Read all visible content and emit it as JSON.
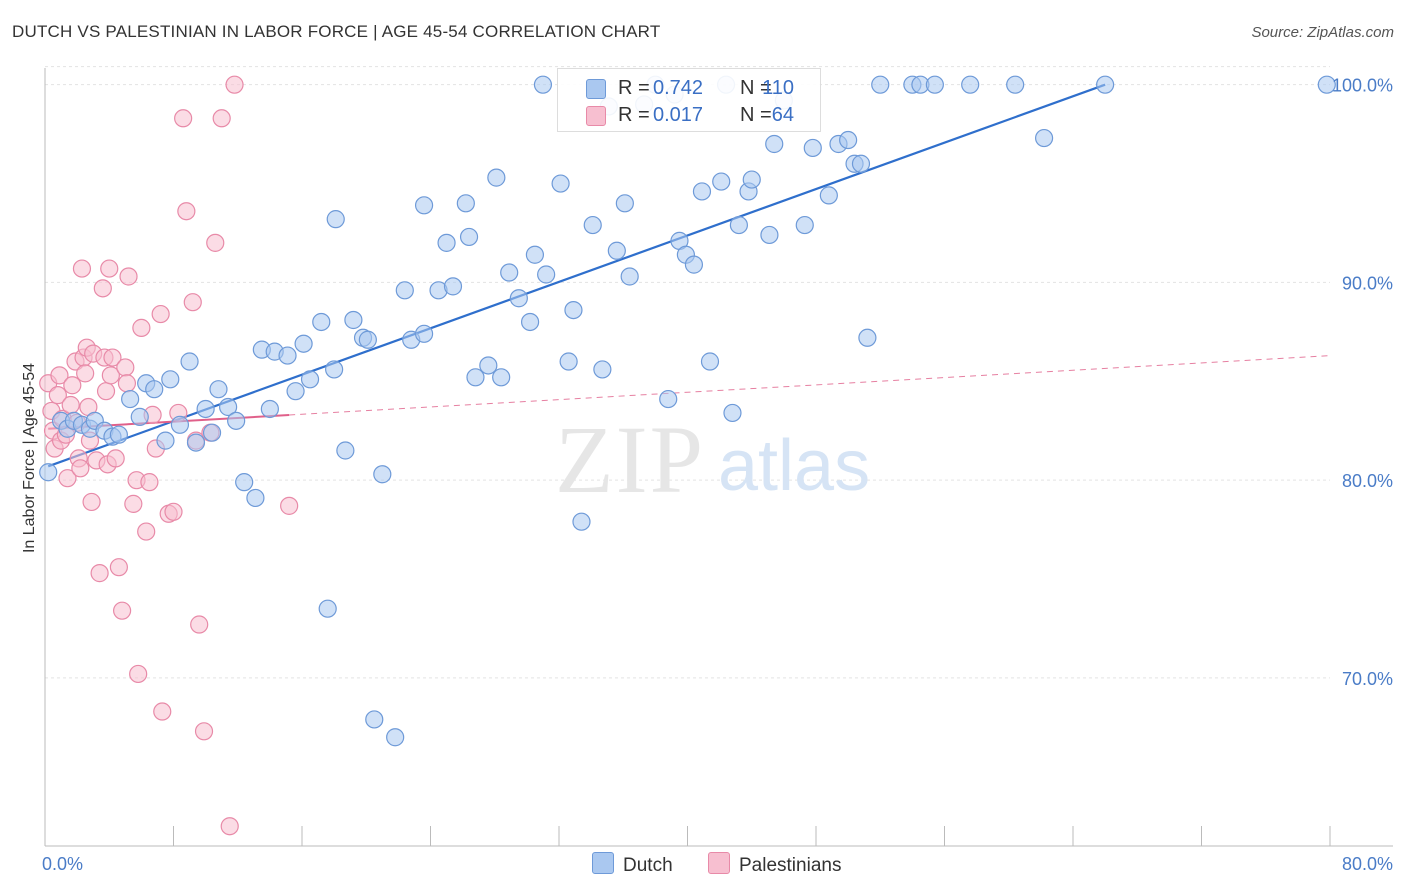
{
  "title": "DUTCH VS PALESTINIAN IN LABOR FORCE | AGE 45-54 CORRELATION CHART",
  "source": "Source: ZipAtlas.com",
  "watermark": {
    "zip": "ZIP",
    "atlas": "atlas"
  },
  "colors": {
    "dutch_fill": "#aac8f0",
    "dutch_stroke": "#6e9ad8",
    "dutch_line": "#2f6fcc",
    "pal_fill": "#f7bfd0",
    "pal_stroke": "#e88aa8",
    "pal_line": "#e0608a",
    "grid": "#e3e3e3",
    "tick_text": "#4a7cc7"
  },
  "legend": {
    "rows": [
      {
        "r_label": "R =",
        "r_value": "0.742",
        "n_label": "N =",
        "n_value": "110"
      },
      {
        "r_label": "R =",
        "r_value": "0.017",
        "n_label": "N =",
        "n_value": "64"
      }
    ]
  },
  "bottom_legend": {
    "dutch": "Dutch",
    "pal": "Palestinians"
  },
  "chart_data": {
    "type": "scatter",
    "title": "DUTCH VS PALESTINIAN IN LABOR FORCE | AGE 45-54 CORRELATION CHART",
    "ylabel": "In Labor Force | Age 45-54",
    "xlabel": "",
    "xlim": [
      0,
      80
    ],
    "ylim": [
      61.5,
      101.5
    ],
    "x_tick_labels": [
      "0.0%",
      "80.0%"
    ],
    "y_ticks": [
      70,
      80,
      90,
      100
    ],
    "y_tick_labels": [
      "70.0%",
      "80.0%",
      "90.0%",
      "100.0%"
    ],
    "grid": true,
    "legend_position": "top-center",
    "series": [
      {
        "name": "Dutch",
        "stats": {
          "R": 0.742,
          "N": 110
        },
        "trend": {
          "x0": 0.2,
          "y0": 80.7,
          "x1": 66.0,
          "y1": 100.0,
          "style": "solid"
        },
        "points": [
          [
            0.2,
            80.4
          ],
          [
            1.0,
            83.0
          ],
          [
            1.4,
            82.6
          ],
          [
            1.8,
            83.0
          ],
          [
            2.3,
            82.8
          ],
          [
            2.8,
            82.6
          ],
          [
            3.1,
            83.0
          ],
          [
            3.7,
            82.5
          ],
          [
            4.2,
            82.2
          ],
          [
            4.6,
            82.3
          ],
          [
            5.3,
            84.1
          ],
          [
            5.9,
            83.2
          ],
          [
            6.3,
            84.9
          ],
          [
            6.8,
            84.6
          ],
          [
            7.5,
            82.0
          ],
          [
            7.8,
            85.1
          ],
          [
            8.4,
            82.8
          ],
          [
            9.0,
            86.0
          ],
          [
            9.4,
            81.9
          ],
          [
            10.0,
            83.6
          ],
          [
            10.4,
            82.4
          ],
          [
            10.8,
            84.6
          ],
          [
            11.4,
            83.7
          ],
          [
            11.9,
            83.0
          ],
          [
            12.4,
            79.9
          ],
          [
            13.1,
            79.1
          ],
          [
            13.5,
            86.6
          ],
          [
            14.0,
            83.6
          ],
          [
            14.3,
            86.5
          ],
          [
            15.1,
            86.3
          ],
          [
            15.6,
            84.5
          ],
          [
            16.1,
            86.9
          ],
          [
            16.5,
            85.1
          ],
          [
            17.2,
            88.0
          ],
          [
            17.6,
            73.5
          ],
          [
            18.0,
            85.6
          ],
          [
            18.1,
            93.2
          ],
          [
            18.7,
            81.5
          ],
          [
            19.2,
            88.1
          ],
          [
            19.8,
            87.2
          ],
          [
            20.1,
            87.1
          ],
          [
            20.5,
            67.9
          ],
          [
            21.0,
            80.3
          ],
          [
            21.8,
            67.0
          ],
          [
            22.4,
            89.6
          ],
          [
            22.8,
            87.1
          ],
          [
            23.6,
            93.9
          ],
          [
            23.6,
            87.4
          ],
          [
            24.5,
            89.6
          ],
          [
            25.0,
            92.0
          ],
          [
            25.4,
            89.8
          ],
          [
            26.2,
            94.0
          ],
          [
            26.4,
            92.3
          ],
          [
            26.8,
            85.2
          ],
          [
            27.6,
            85.8
          ],
          [
            28.1,
            95.3
          ],
          [
            28.4,
            85.2
          ],
          [
            28.9,
            90.5
          ],
          [
            29.5,
            89.2
          ],
          [
            30.2,
            88.0
          ],
          [
            30.5,
            91.4
          ],
          [
            31.0,
            100.0
          ],
          [
            31.2,
            90.4
          ],
          [
            32.1,
            95.0
          ],
          [
            32.6,
            86.0
          ],
          [
            32.9,
            88.6
          ],
          [
            33.4,
            77.9
          ],
          [
            34.1,
            92.9
          ],
          [
            34.7,
            85.6
          ],
          [
            35.1,
            98.9
          ],
          [
            35.6,
            91.6
          ],
          [
            36.1,
            94.0
          ],
          [
            36.4,
            90.3
          ],
          [
            37.3,
            99.0
          ],
          [
            38.0,
            100.0
          ],
          [
            38.8,
            84.1
          ],
          [
            39.2,
            99.5
          ],
          [
            39.5,
            92.1
          ],
          [
            39.9,
            91.4
          ],
          [
            40.4,
            90.9
          ],
          [
            40.9,
            94.6
          ],
          [
            41.4,
            86.0
          ],
          [
            42.1,
            95.1
          ],
          [
            42.4,
            100.0
          ],
          [
            42.8,
            83.4
          ],
          [
            43.2,
            92.9
          ],
          [
            43.8,
            94.6
          ],
          [
            44.0,
            95.2
          ],
          [
            45.1,
            92.4
          ],
          [
            45.4,
            97.0
          ],
          [
            46.0,
            99.2
          ],
          [
            47.3,
            92.9
          ],
          [
            47.8,
            96.8
          ],
          [
            48.8,
            94.4
          ],
          [
            49.4,
            97.0
          ],
          [
            50.0,
            97.2
          ],
          [
            50.4,
            96.0
          ],
          [
            50.8,
            96.0
          ],
          [
            51.2,
            87.2
          ],
          [
            52.0,
            100.0
          ],
          [
            54.0,
            100.0
          ],
          [
            54.5,
            100.0
          ],
          [
            55.4,
            100.0
          ],
          [
            57.6,
            100.0
          ],
          [
            60.4,
            100.0
          ],
          [
            62.2,
            97.3
          ],
          [
            66.0,
            100.0
          ],
          [
            79.8,
            100.0
          ]
        ]
      },
      {
        "name": "Palestinians",
        "stats": {
          "R": 0.017,
          "N": 64
        },
        "trend": {
          "x0": 0.2,
          "y0": 82.6,
          "x1": 80.0,
          "y1": 86.3,
          "solid_until_x": 15.2,
          "style": "solid-then-dashed"
        },
        "points": [
          [
            0.2,
            84.9
          ],
          [
            0.4,
            83.5
          ],
          [
            0.5,
            82.5
          ],
          [
            0.6,
            81.6
          ],
          [
            0.8,
            84.3
          ],
          [
            0.9,
            85.3
          ],
          [
            1.0,
            82.0
          ],
          [
            1.1,
            83.1
          ],
          [
            1.3,
            82.3
          ],
          [
            1.4,
            80.1
          ],
          [
            1.6,
            83.8
          ],
          [
            1.7,
            84.8
          ],
          [
            1.9,
            86.0
          ],
          [
            2.0,
            82.9
          ],
          [
            2.1,
            81.1
          ],
          [
            2.2,
            80.6
          ],
          [
            2.3,
            90.7
          ],
          [
            2.4,
            86.2
          ],
          [
            2.5,
            85.4
          ],
          [
            2.6,
            86.7
          ],
          [
            2.7,
            83.7
          ],
          [
            2.8,
            82.0
          ],
          [
            2.9,
            78.9
          ],
          [
            3.0,
            86.4
          ],
          [
            3.2,
            81.0
          ],
          [
            3.4,
            75.3
          ],
          [
            3.6,
            89.7
          ],
          [
            3.7,
            86.2
          ],
          [
            3.8,
            84.5
          ],
          [
            3.9,
            80.8
          ],
          [
            4.0,
            90.7
          ],
          [
            4.1,
            85.3
          ],
          [
            4.2,
            86.2
          ],
          [
            4.4,
            81.1
          ],
          [
            4.6,
            75.6
          ],
          [
            4.8,
            73.4
          ],
          [
            5.0,
            85.7
          ],
          [
            5.1,
            84.9
          ],
          [
            5.2,
            90.3
          ],
          [
            5.5,
            78.8
          ],
          [
            5.7,
            80.0
          ],
          [
            5.8,
            70.2
          ],
          [
            6.0,
            87.7
          ],
          [
            6.3,
            77.4
          ],
          [
            6.5,
            79.9
          ],
          [
            6.7,
            83.3
          ],
          [
            6.9,
            81.6
          ],
          [
            7.2,
            88.4
          ],
          [
            7.3,
            68.3
          ],
          [
            7.7,
            78.3
          ],
          [
            8.0,
            78.4
          ],
          [
            8.3,
            83.4
          ],
          [
            8.6,
            98.3
          ],
          [
            8.8,
            93.6
          ],
          [
            9.2,
            89.0
          ],
          [
            9.4,
            82.0
          ],
          [
            9.6,
            72.7
          ],
          [
            9.9,
            67.3
          ],
          [
            10.3,
            82.4
          ],
          [
            10.6,
            92.0
          ],
          [
            11.0,
            98.3
          ],
          [
            11.5,
            62.5
          ],
          [
            11.8,
            100.0
          ],
          [
            15.2,
            78.7
          ]
        ]
      }
    ]
  }
}
